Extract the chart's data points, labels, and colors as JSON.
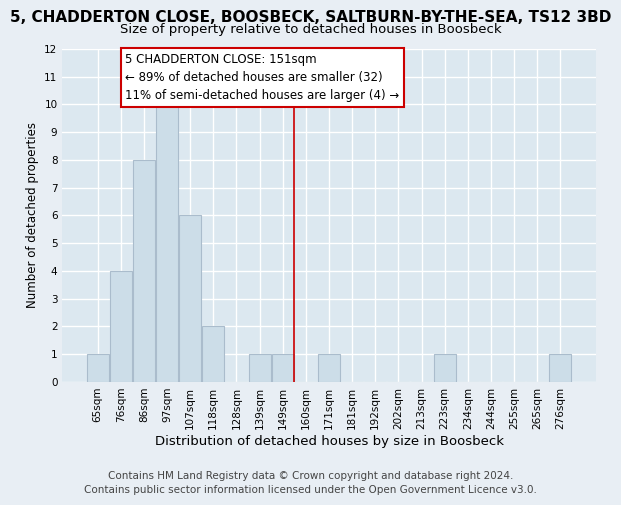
{
  "title": "5, CHADDERTON CLOSE, BOOSBECK, SALTBURN-BY-THE-SEA, TS12 3BD",
  "subtitle": "Size of property relative to detached houses in Boosbeck",
  "xlabel": "Distribution of detached houses by size in Boosbeck",
  "ylabel": "Number of detached properties",
  "bar_labels": [
    "65sqm",
    "76sqm",
    "86sqm",
    "97sqm",
    "107sqm",
    "118sqm",
    "128sqm",
    "139sqm",
    "149sqm",
    "160sqm",
    "171sqm",
    "181sqm",
    "192sqm",
    "202sqm",
    "213sqm",
    "223sqm",
    "234sqm",
    "244sqm",
    "255sqm",
    "265sqm",
    "276sqm"
  ],
  "bar_heights": [
    1,
    4,
    8,
    10,
    6,
    2,
    0,
    1,
    1,
    0,
    1,
    0,
    0,
    0,
    0,
    1,
    0,
    0,
    0,
    0,
    1
  ],
  "bar_color": "#ccdde8",
  "bar_edgecolor": "#aabccc",
  "ylim": [
    0,
    12
  ],
  "yticks": [
    0,
    1,
    2,
    3,
    4,
    5,
    6,
    7,
    8,
    9,
    10,
    11,
    12
  ],
  "vline_x": 8.5,
  "vline_color": "#cc0000",
  "annotation_title": "5 CHADDERTON CLOSE: 151sqm",
  "annotation_line1": "← 89% of detached houses are smaller (32)",
  "annotation_line2": "11% of semi-detached houses are larger (4) →",
  "annotation_box_edgecolor": "#cc0000",
  "footer1": "Contains HM Land Registry data © Crown copyright and database right 2024.",
  "footer2": "Contains public sector information licensed under the Open Government Licence v3.0.",
  "background_color": "#e8eef4",
  "plot_background_color": "#dce8f0",
  "grid_color": "#ffffff",
  "title_fontsize": 11,
  "subtitle_fontsize": 9.5,
  "xlabel_fontsize": 9.5,
  "ylabel_fontsize": 8.5,
  "tick_fontsize": 7.5,
  "footer_fontsize": 7.5,
  "ann_fontsize": 8.5
}
